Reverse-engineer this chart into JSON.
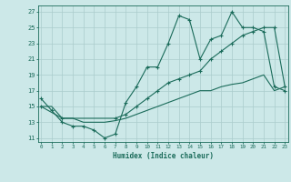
{
  "xlabel": "Humidex (Indice chaleur)",
  "ylabel": "",
  "bg_color": "#cce8e8",
  "grid_color": "#aacccc",
  "line_color": "#1a6b5a",
  "line1": {
    "x": [
      0,
      1,
      2,
      3,
      4,
      5,
      6,
      7,
      8,
      9,
      10,
      11,
      12,
      13,
      14,
      15,
      16,
      17,
      18,
      19,
      20,
      21,
      22,
      23
    ],
    "y": [
      16,
      14.5,
      13,
      12.5,
      12.5,
      12,
      11,
      11.5,
      15.5,
      17.5,
      20,
      20,
      23,
      26.5,
      26,
      21,
      23.5,
      24,
      27,
      25,
      25,
      24.5,
      17.5,
      17
    ]
  },
  "line2": {
    "x": [
      0,
      2,
      7,
      8,
      9,
      10,
      11,
      12,
      13,
      14,
      15,
      16,
      17,
      18,
      19,
      20,
      21,
      22,
      23
    ],
    "y": [
      15,
      13.5,
      13.5,
      14,
      15,
      16,
      17,
      18,
      18.5,
      19,
      19.5,
      21,
      22,
      23,
      24,
      24.5,
      25,
      25,
      17.5
    ]
  },
  "line3": {
    "x": [
      0,
      1,
      2,
      3,
      4,
      5,
      6,
      7,
      8,
      9,
      10,
      11,
      12,
      13,
      14,
      15,
      16,
      17,
      18,
      19,
      20,
      21,
      22,
      23
    ],
    "y": [
      15,
      15,
      13.5,
      13.5,
      13,
      13,
      13,
      13.2,
      13.5,
      14,
      14.5,
      15,
      15.5,
      16,
      16.5,
      17,
      17,
      17.5,
      17.8,
      18,
      18.5,
      19,
      17,
      17.5
    ]
  },
  "yticks": [
    11,
    13,
    15,
    17,
    19,
    21,
    23,
    25,
    27
  ],
  "xticks": [
    0,
    1,
    2,
    3,
    4,
    5,
    6,
    7,
    8,
    9,
    10,
    11,
    12,
    13,
    14,
    15,
    16,
    17,
    18,
    19,
    20,
    21,
    22,
    23
  ],
  "xlim": [
    -0.3,
    23.3
  ],
  "ylim": [
    10.5,
    27.8
  ]
}
